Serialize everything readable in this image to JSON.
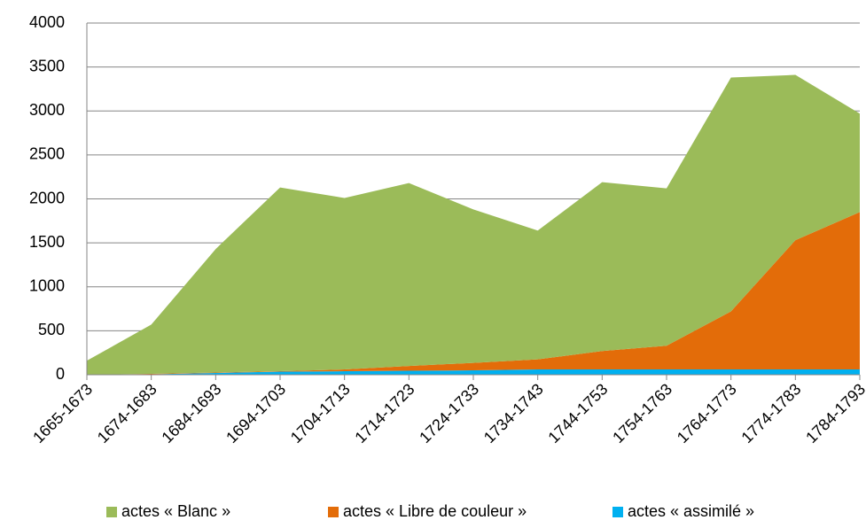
{
  "chart_data": {
    "type": "stacked_area",
    "categories": [
      "1665-1673",
      "1674-1683",
      "1684-1693",
      "1694-1703",
      "1704-1713",
      "1714-1723",
      "1724-1733",
      "1734-1743",
      "1744-1753",
      "1754-1763",
      "1764-1773",
      "1774-1783",
      "1784-1793"
    ],
    "series": [
      {
        "name": "actes « Blanc »",
        "color": "#9bbb59",
        "values": [
          160,
          560,
          1405,
          2090,
          1950,
          2080,
          1745,
          1465,
          1920,
          1790,
          2660,
          1880,
          1120
        ]
      },
      {
        "name": "actes « Libre de couleur »",
        "color": "#e36c09",
        "values": [
          0,
          5,
          5,
          5,
          20,
          55,
          85,
          115,
          210,
          270,
          660,
          1470,
          1790
        ]
      },
      {
        "name": "actes « assimilé »",
        "color": "#00b0f0",
        "values": [
          0,
          5,
          20,
          35,
          40,
          45,
          50,
          60,
          60,
          60,
          60,
          60,
          60
        ]
      }
    ],
    "ylim": [
      0,
      4000
    ],
    "yticks": [
      0,
      500,
      1000,
      1500,
      2000,
      2500,
      3000,
      3500,
      4000
    ],
    "grid": true,
    "legend": "bottom"
  }
}
